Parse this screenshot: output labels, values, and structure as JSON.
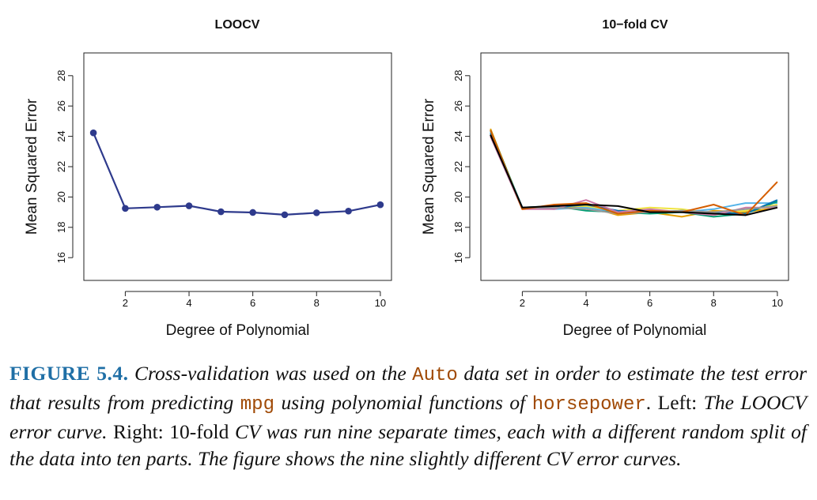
{
  "chart_data": [
    {
      "type": "line",
      "title": "LOOCV",
      "xlabel": "Degree of Polynomial",
      "ylabel": "Mean Squared Error",
      "xlim": [
        0.7,
        10.35
      ],
      "ylim": [
        14.5,
        29.5
      ],
      "xticks": [
        2,
        4,
        6,
        8,
        10
      ],
      "yticks": [
        16,
        18,
        20,
        22,
        24,
        26,
        28
      ],
      "markers": true,
      "series": [
        {
          "color": "#2e3a8c",
          "x": [
            1,
            2,
            3,
            4,
            5,
            6,
            7,
            8,
            9,
            10
          ],
          "y": [
            24.23,
            19.25,
            19.33,
            19.42,
            19.03,
            18.98,
            18.83,
            18.96,
            19.07,
            19.49
          ]
        }
      ]
    },
    {
      "type": "line",
      "title": "10−fold CV",
      "xlabel": "Degree of Polynomial",
      "ylabel": "Mean Squared Error",
      "xlim": [
        0.7,
        10.35
      ],
      "ylim": [
        14.5,
        29.5
      ],
      "xticks": [
        2,
        4,
        6,
        8,
        10
      ],
      "yticks": [
        16,
        18,
        20,
        22,
        24,
        26,
        28
      ],
      "markers": false,
      "series": [
        {
          "color": "#e69f00",
          "x": [
            1,
            2,
            3,
            4,
            5,
            6,
            7,
            8,
            9,
            10
          ],
          "y": [
            24.5,
            19.2,
            19.3,
            19.4,
            18.8,
            19.0,
            18.7,
            19.1,
            19.0,
            19.3
          ]
        },
        {
          "color": "#56b4e9",
          "x": [
            1,
            2,
            3,
            4,
            5,
            6,
            7,
            8,
            9,
            10
          ],
          "y": [
            24.3,
            19.3,
            19.2,
            19.3,
            19.0,
            19.1,
            19.0,
            19.2,
            19.6,
            19.6
          ]
        },
        {
          "color": "#009e73",
          "x": [
            1,
            2,
            3,
            4,
            5,
            6,
            7,
            8,
            9,
            10
          ],
          "y": [
            24.4,
            19.3,
            19.4,
            19.1,
            19.0,
            18.9,
            19.0,
            18.7,
            18.9,
            19.7
          ]
        },
        {
          "color": "#f0e442",
          "x": [
            1,
            2,
            3,
            4,
            5,
            6,
            7,
            8,
            9,
            10
          ],
          "y": [
            24.1,
            19.2,
            19.4,
            19.4,
            19.1,
            19.3,
            19.2,
            18.9,
            19.1,
            19.5
          ]
        },
        {
          "color": "#0072b2",
          "x": [
            1,
            2,
            3,
            4,
            5,
            6,
            7,
            8,
            9,
            10
          ],
          "y": [
            24.2,
            19.3,
            19.3,
            19.5,
            19.1,
            19.0,
            19.1,
            19.0,
            18.9,
            19.8
          ]
        },
        {
          "color": "#cc79a7",
          "x": [
            1,
            2,
            3,
            4,
            5,
            6,
            7,
            8,
            9,
            10
          ],
          "y": [
            24.0,
            19.2,
            19.2,
            19.8,
            19.0,
            19.2,
            19.0,
            18.8,
            19.3,
            19.3
          ]
        },
        {
          "color": "#999999",
          "x": [
            1,
            2,
            3,
            4,
            5,
            6,
            7,
            8,
            9,
            10
          ],
          "y": [
            24.1,
            19.3,
            19.3,
            19.2,
            18.9,
            19.0,
            19.1,
            19.0,
            19.2,
            19.4
          ]
        },
        {
          "color": "#d55e00",
          "x": [
            1,
            2,
            3,
            4,
            5,
            6,
            7,
            8,
            9,
            10
          ],
          "y": [
            24.4,
            19.2,
            19.5,
            19.6,
            18.9,
            19.1,
            19.0,
            19.5,
            18.8,
            21.0
          ]
        },
        {
          "color": "#000000",
          "x": [
            1,
            2,
            3,
            4,
            5,
            6,
            7,
            8,
            9,
            10
          ],
          "y": [
            24.1,
            19.3,
            19.4,
            19.5,
            19.4,
            19.0,
            19.0,
            18.9,
            18.8,
            19.3
          ]
        }
      ]
    }
  ],
  "caption": {
    "label": "FIGURE 5.4.",
    "part1": "Cross-validation was used on the",
    "code1": "Auto",
    "part2": "data set in order to estimate the test error that results from predicting",
    "code2": "mpg",
    "part3": "using polynomial functions of",
    "code3": "horsepower",
    "part4": ". Left:",
    "part5": "The LOOCV error curve.",
    "part6": "Right: 10-fold",
    "part7": "CV was run nine separate times, each with a different random split of the data into ten parts. The figure shows the nine slightly different CV error curves."
  }
}
